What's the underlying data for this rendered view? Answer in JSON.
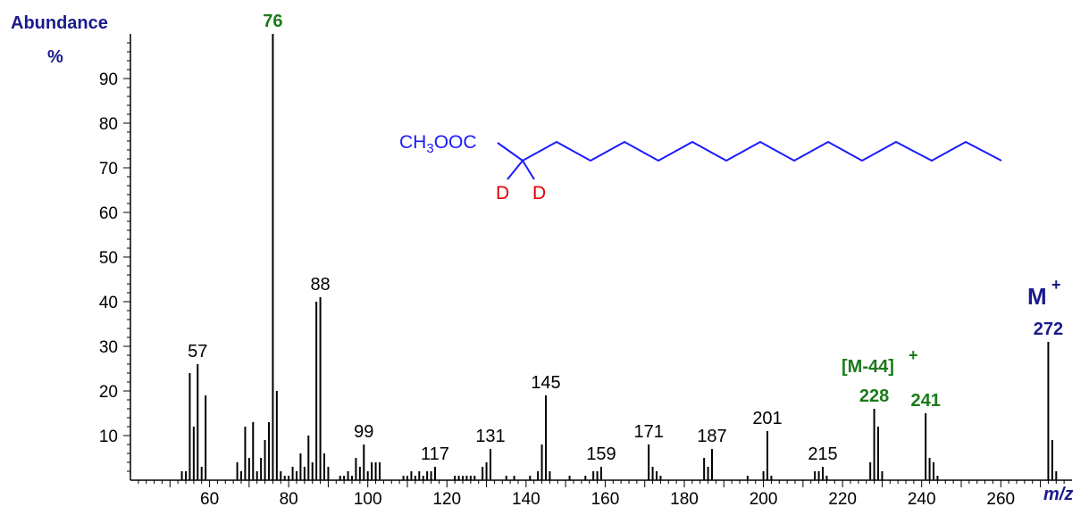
{
  "chart_data": {
    "type": "bar",
    "title": "",
    "ylabel": "Abundance",
    "ylabel_unit": "%",
    "xlabel": "m/z",
    "xlim": [
      40,
      278
    ],
    "ylim": [
      0,
      100
    ],
    "x_ticks": [
      60,
      80,
      100,
      120,
      140,
      160,
      180,
      200,
      220,
      240,
      260
    ],
    "y_ticks": [
      10,
      20,
      30,
      40,
      50,
      60,
      70,
      80,
      90
    ],
    "peaks": [
      {
        "mz": 53,
        "abundance": 2
      },
      {
        "mz": 54,
        "abundance": 2
      },
      {
        "mz": 55,
        "abundance": 24
      },
      {
        "mz": 56,
        "abundance": 12
      },
      {
        "mz": 57,
        "abundance": 26
      },
      {
        "mz": 58,
        "abundance": 3
      },
      {
        "mz": 59,
        "abundance": 19
      },
      {
        "mz": 67,
        "abundance": 4
      },
      {
        "mz": 68,
        "abundance": 2
      },
      {
        "mz": 69,
        "abundance": 12
      },
      {
        "mz": 70,
        "abundance": 5
      },
      {
        "mz": 71,
        "abundance": 13
      },
      {
        "mz": 72,
        "abundance": 2
      },
      {
        "mz": 73,
        "abundance": 5
      },
      {
        "mz": 74,
        "abundance": 9
      },
      {
        "mz": 75,
        "abundance": 13
      },
      {
        "mz": 76,
        "abundance": 100
      },
      {
        "mz": 77,
        "abundance": 20
      },
      {
        "mz": 78,
        "abundance": 2
      },
      {
        "mz": 79,
        "abundance": 1
      },
      {
        "mz": 80,
        "abundance": 1
      },
      {
        "mz": 81,
        "abundance": 3
      },
      {
        "mz": 82,
        "abundance": 2
      },
      {
        "mz": 83,
        "abundance": 6
      },
      {
        "mz": 84,
        "abundance": 3
      },
      {
        "mz": 85,
        "abundance": 10
      },
      {
        "mz": 86,
        "abundance": 4
      },
      {
        "mz": 87,
        "abundance": 40
      },
      {
        "mz": 88,
        "abundance": 41
      },
      {
        "mz": 89,
        "abundance": 6
      },
      {
        "mz": 90,
        "abundance": 3
      },
      {
        "mz": 93,
        "abundance": 1
      },
      {
        "mz": 94,
        "abundance": 1
      },
      {
        "mz": 95,
        "abundance": 2
      },
      {
        "mz": 96,
        "abundance": 1
      },
      {
        "mz": 97,
        "abundance": 5
      },
      {
        "mz": 98,
        "abundance": 3
      },
      {
        "mz": 99,
        "abundance": 8
      },
      {
        "mz": 100,
        "abundance": 2
      },
      {
        "mz": 101,
        "abundance": 4
      },
      {
        "mz": 102,
        "abundance": 4
      },
      {
        "mz": 103,
        "abundance": 4
      },
      {
        "mz": 109,
        "abundance": 1
      },
      {
        "mz": 110,
        "abundance": 1
      },
      {
        "mz": 111,
        "abundance": 2
      },
      {
        "mz": 112,
        "abundance": 1
      },
      {
        "mz": 113,
        "abundance": 2
      },
      {
        "mz": 114,
        "abundance": 1
      },
      {
        "mz": 115,
        "abundance": 2
      },
      {
        "mz": 116,
        "abundance": 2
      },
      {
        "mz": 117,
        "abundance": 3
      },
      {
        "mz": 122,
        "abundance": 1
      },
      {
        "mz": 123,
        "abundance": 1
      },
      {
        "mz": 124,
        "abundance": 1
      },
      {
        "mz": 125,
        "abundance": 1
      },
      {
        "mz": 126,
        "abundance": 1
      },
      {
        "mz": 127,
        "abundance": 1
      },
      {
        "mz": 129,
        "abundance": 3
      },
      {
        "mz": 130,
        "abundance": 4
      },
      {
        "mz": 131,
        "abundance": 7
      },
      {
        "mz": 135,
        "abundance": 1
      },
      {
        "mz": 137,
        "abundance": 1
      },
      {
        "mz": 141,
        "abundance": 1
      },
      {
        "mz": 143,
        "abundance": 2
      },
      {
        "mz": 144,
        "abundance": 8
      },
      {
        "mz": 145,
        "abundance": 19
      },
      {
        "mz": 146,
        "abundance": 2
      },
      {
        "mz": 151,
        "abundance": 1
      },
      {
        "mz": 155,
        "abundance": 1
      },
      {
        "mz": 157,
        "abundance": 2
      },
      {
        "mz": 158,
        "abundance": 2
      },
      {
        "mz": 159,
        "abundance": 3
      },
      {
        "mz": 171,
        "abundance": 8
      },
      {
        "mz": 172,
        "abundance": 3
      },
      {
        "mz": 173,
        "abundance": 2
      },
      {
        "mz": 174,
        "abundance": 1
      },
      {
        "mz": 185,
        "abundance": 5
      },
      {
        "mz": 186,
        "abundance": 3
      },
      {
        "mz": 187,
        "abundance": 7
      },
      {
        "mz": 196,
        "abundance": 1
      },
      {
        "mz": 200,
        "abundance": 2
      },
      {
        "mz": 201,
        "abundance": 11
      },
      {
        "mz": 202,
        "abundance": 1
      },
      {
        "mz": 213,
        "abundance": 2
      },
      {
        "mz": 214,
        "abundance": 2
      },
      {
        "mz": 215,
        "abundance": 3
      },
      {
        "mz": 216,
        "abundance": 1
      },
      {
        "mz": 227,
        "abundance": 4
      },
      {
        "mz": 228,
        "abundance": 16
      },
      {
        "mz": 229,
        "abundance": 12
      },
      {
        "mz": 230,
        "abundance": 2
      },
      {
        "mz": 241,
        "abundance": 15
      },
      {
        "mz": 242,
        "abundance": 5
      },
      {
        "mz": 243,
        "abundance": 4
      },
      {
        "mz": 244,
        "abundance": 1
      },
      {
        "mz": 272,
        "abundance": 31
      },
      {
        "mz": 273,
        "abundance": 9
      },
      {
        "mz": 274,
        "abundance": 2
      }
    ],
    "peak_labels": [
      {
        "mz": 57,
        "text": "57",
        "style": "normal"
      },
      {
        "mz": 76,
        "text": "76",
        "style": "bold-green"
      },
      {
        "mz": 88,
        "text": "88",
        "style": "normal"
      },
      {
        "mz": 99,
        "text": "99",
        "style": "normal"
      },
      {
        "mz": 117,
        "text": "117",
        "style": "normal"
      },
      {
        "mz": 131,
        "text": "131",
        "style": "normal"
      },
      {
        "mz": 145,
        "text": "145",
        "style": "normal"
      },
      {
        "mz": 159,
        "text": "159",
        "style": "normal"
      },
      {
        "mz": 171,
        "text": "171",
        "style": "normal"
      },
      {
        "mz": 187,
        "text": "187",
        "style": "normal"
      },
      {
        "mz": 201,
        "text": "201",
        "style": "normal"
      },
      {
        "mz": 215,
        "text": "215",
        "style": "normal"
      },
      {
        "mz": 228,
        "text": "228",
        "style": "bold-green"
      },
      {
        "mz": 241,
        "text": "241",
        "style": "bold-green"
      },
      {
        "mz": 272,
        "text": "272",
        "style": "bold-blue"
      }
    ],
    "annotations": {
      "molecular_ion": "M",
      "molecular_ion_charge": "+",
      "fragment": "[M-44]",
      "fragment_charge": "+"
    },
    "structure": {
      "ester_group": "CH3OOC",
      "ester_prefix": "CH",
      "ester_subscript": "3",
      "ester_suffix": "OOC",
      "deuterium_1": "D",
      "deuterium_2": "D"
    },
    "colors": {
      "bars": "#000000",
      "axis_title": "#1a1a8c",
      "highlight_green": "#1a7a1a",
      "structure_chain": "#1a1aff",
      "deuterium": "#e00000"
    }
  }
}
